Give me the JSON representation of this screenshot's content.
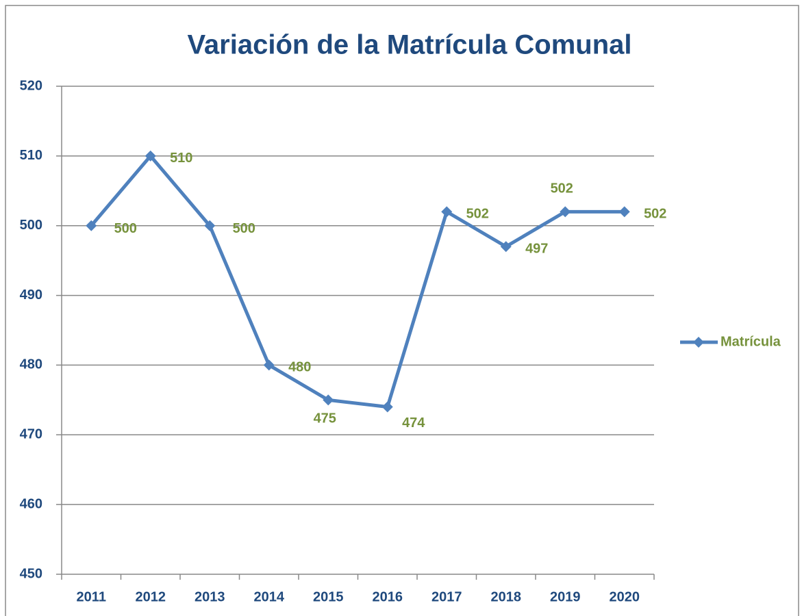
{
  "chart_data": {
    "type": "line",
    "title": "Variación de la Matrícula Comunal",
    "categories": [
      "2011",
      "2012",
      "2013",
      "2014",
      "2015",
      "2016",
      "2017",
      "2018",
      "2019",
      "2020"
    ],
    "series": [
      {
        "name": "Matrícula",
        "color": "#4f81bd",
        "values": [
          500,
          510,
          500,
          480,
          475,
          474,
          502,
          497,
          502,
          502
        ]
      }
    ],
    "ylim": [
      450,
      520
    ],
    "yticks": [
      450,
      460,
      470,
      480,
      490,
      500,
      510,
      520
    ],
    "grid": true,
    "legend": "right",
    "label_color": "#76923c"
  }
}
